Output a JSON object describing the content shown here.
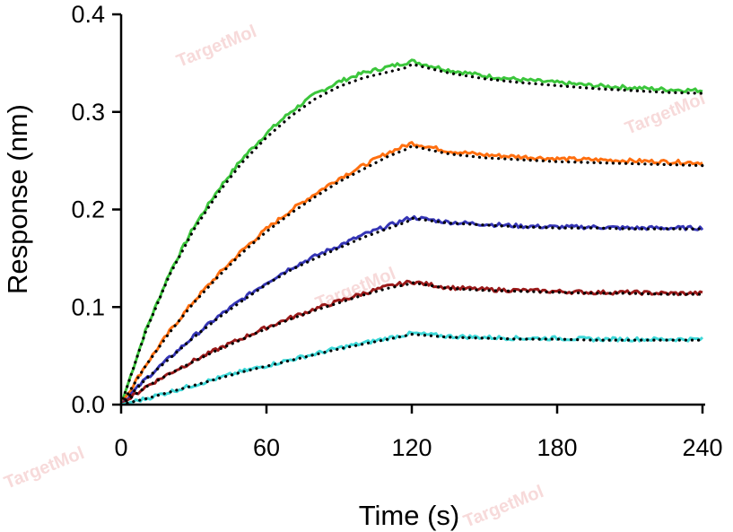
{
  "chart_data": {
    "type": "line",
    "title": "",
    "xlabel": "Time (s)",
    "ylabel": "Response (nm)",
    "xlim": [
      0,
      240
    ],
    "ylim": [
      0,
      0.4
    ],
    "x_ticks": [
      "0",
      "60",
      "120",
      "180",
      "240"
    ],
    "y_ticks": [
      "0.0",
      "0.1",
      "0.2",
      "0.3",
      "0.4"
    ],
    "grid": false,
    "legend": "none",
    "association_end": 120,
    "series": [
      {
        "color": "#3cc63c",
        "x": [
          0,
          10,
          20,
          30,
          40,
          50,
          60,
          70,
          80,
          90,
          100,
          110,
          120,
          135,
          150,
          165,
          180,
          195,
          210,
          225,
          240
        ],
        "y": [
          0,
          0.075,
          0.135,
          0.182,
          0.22,
          0.252,
          0.278,
          0.3,
          0.318,
          0.331,
          0.34,
          0.346,
          0.352,
          0.343,
          0.337,
          0.333,
          0.33,
          0.327,
          0.325,
          0.323,
          0.322
        ]
      },
      {
        "color": "#ff6f10",
        "x": [
          0,
          10,
          20,
          30,
          40,
          50,
          60,
          70,
          80,
          90,
          100,
          110,
          120,
          135,
          150,
          165,
          180,
          195,
          210,
          225,
          240
        ],
        "y": [
          0,
          0.04,
          0.075,
          0.106,
          0.133,
          0.158,
          0.18,
          0.199,
          0.216,
          0.232,
          0.245,
          0.258,
          0.268,
          0.26,
          0.256,
          0.254,
          0.252,
          0.251,
          0.25,
          0.249,
          0.248
        ]
      },
      {
        "color": "#3535b5",
        "x": [
          0,
          10,
          20,
          30,
          40,
          50,
          60,
          70,
          80,
          90,
          100,
          110,
          120,
          135,
          150,
          165,
          180,
          195,
          210,
          225,
          240
        ],
        "y": [
          0,
          0.026,
          0.048,
          0.07,
          0.09,
          0.108,
          0.125,
          0.14,
          0.152,
          0.163,
          0.174,
          0.183,
          0.192,
          0.187,
          0.185,
          0.183,
          0.182,
          0.182,
          0.181,
          0.181,
          0.181
        ]
      },
      {
        "color": "#9b1a1a",
        "x": [
          0,
          10,
          20,
          30,
          40,
          50,
          60,
          70,
          80,
          90,
          100,
          110,
          120,
          135,
          150,
          165,
          180,
          195,
          210,
          225,
          240
        ],
        "y": [
          0,
          0.018,
          0.032,
          0.045,
          0.057,
          0.068,
          0.079,
          0.089,
          0.098,
          0.106,
          0.114,
          0.121,
          0.126,
          0.12,
          0.118,
          0.117,
          0.116,
          0.115,
          0.115,
          0.114,
          0.114
        ]
      },
      {
        "color": "#3fd8d8",
        "x": [
          0,
          10,
          20,
          30,
          40,
          50,
          60,
          70,
          80,
          90,
          100,
          110,
          120,
          135,
          150,
          165,
          180,
          195,
          210,
          225,
          240
        ],
        "y": [
          0,
          0.006,
          0.013,
          0.02,
          0.027,
          0.034,
          0.04,
          0.046,
          0.052,
          0.058,
          0.063,
          0.068,
          0.073,
          0.07,
          0.069,
          0.068,
          0.068,
          0.067,
          0.067,
          0.067,
          0.067
        ]
      }
    ],
    "fit_color": "#000000"
  },
  "watermark": "TargetMol"
}
